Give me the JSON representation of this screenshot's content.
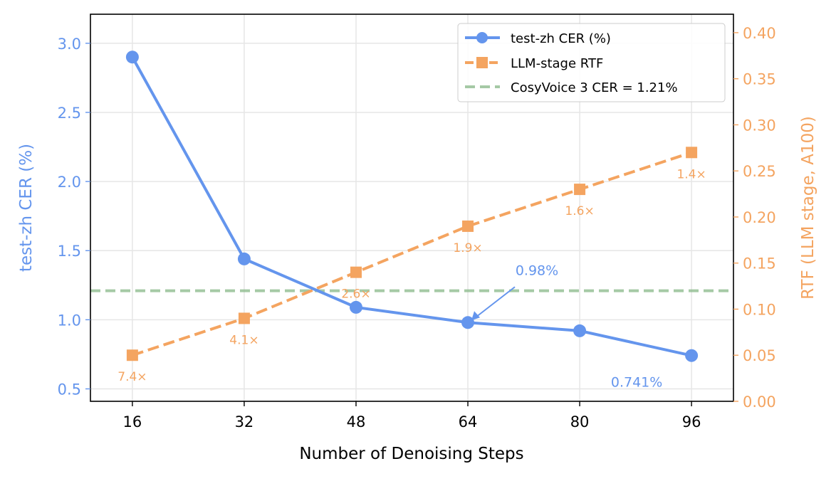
{
  "chart_data": {
    "type": "line",
    "xlabel": "Number of Denoising Steps",
    "ylabel_left": "test-zh CER (%)",
    "ylabel_right": "RTF (LLM stage, A100)",
    "x": [
      16,
      32,
      48,
      64,
      80,
      96
    ],
    "x_ticks": [
      "16",
      "32",
      "48",
      "64",
      "80",
      "96"
    ],
    "xlim": [
      10,
      102
    ],
    "ylim_left": [
      0.41,
      3.21
    ],
    "ylim_right": [
      0.0,
      0.42
    ],
    "y_ticks_left": [
      "0.5",
      "1.0",
      "1.5",
      "2.0",
      "2.5",
      "3.0"
    ],
    "y_ticks_right": [
      "0.00",
      "0.05",
      "0.10",
      "0.15",
      "0.20",
      "0.25",
      "0.30",
      "0.35",
      "0.40"
    ],
    "grid": true,
    "legend_placement": "top-right",
    "series": [
      {
        "name": "test-zh CER (%)",
        "axis": "left",
        "values": [
          2.9,
          1.44,
          1.09,
          0.98,
          0.92,
          0.741
        ],
        "color": "#6495ed",
        "style": "solid",
        "marker": "circle"
      },
      {
        "name": "LLM-stage RTF",
        "axis": "right",
        "values": [
          0.05,
          0.09,
          0.14,
          0.19,
          0.23,
          0.27
        ],
        "color": "#f4a460",
        "style": "dashed",
        "marker": "square",
        "point_labels": [
          "7.4×",
          "4.1×",
          "2.6×",
          "1.9×",
          "1.6×",
          "1.4×"
        ]
      }
    ],
    "reference_line": {
      "name": "CosyVoice 3 CER = 1.21%",
      "axis": "left",
      "value": 1.21,
      "color": "#8fbc8f",
      "style": "dashed"
    },
    "annotations": [
      {
        "text": "0.98%",
        "x": 64,
        "y": 0.98,
        "arrow": true
      },
      {
        "text": "0.741%",
        "x": 96,
        "y": 0.741,
        "arrow": false
      }
    ]
  }
}
